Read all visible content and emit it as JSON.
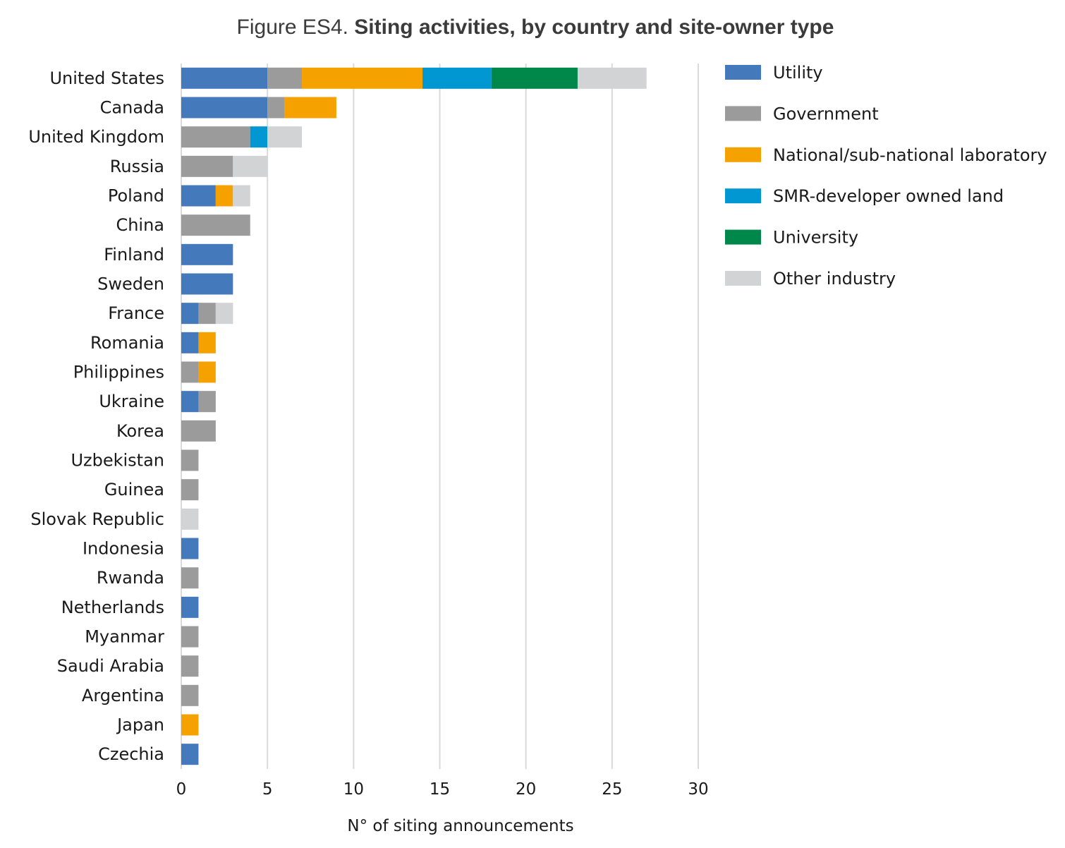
{
  "title": {
    "prefix": "Figure ES4.",
    "main": "Siting activities, by country and site-owner type"
  },
  "chart_data": {
    "type": "bar",
    "orientation": "horizontal",
    "stacked": true,
    "categories": [
      "United States",
      "Canada",
      "United Kingdom",
      "Russia",
      "Poland",
      "China",
      "Finland",
      "Sweden",
      "France",
      "Romania",
      "Philippines",
      "Ukraine",
      "Korea",
      "Uzbekistan",
      "Guinea",
      "Slovak Republic",
      "Indonesia",
      "Rwanda",
      "Netherlands",
      "Myanmar",
      "Saudi Arabia",
      "Argentina",
      "Japan",
      "Czechia"
    ],
    "series": [
      {
        "name": "Utility",
        "color": "#4479bb",
        "values": [
          5,
          5,
          0,
          0,
          2,
          0,
          3,
          3,
          1,
          1,
          0,
          1,
          0,
          0,
          0,
          0,
          1,
          0,
          1,
          0,
          0,
          0,
          0,
          1
        ]
      },
      {
        "name": "Government",
        "color": "#9b9b9b",
        "values": [
          2,
          1,
          4,
          3,
          0,
          4,
          0,
          0,
          1,
          0,
          1,
          1,
          2,
          1,
          1,
          0,
          0,
          1,
          0,
          1,
          1,
          1,
          0,
          0
        ]
      },
      {
        "name": "National/sub-national laboratory",
        "color": "#f5a201",
        "values": [
          7,
          3,
          0,
          0,
          1,
          0,
          0,
          0,
          0,
          1,
          1,
          0,
          0,
          0,
          0,
          0,
          0,
          0,
          0,
          0,
          0,
          0,
          1,
          0
        ]
      },
      {
        "name": "SMR-developer owned land",
        "color": "#0097d3",
        "values": [
          4,
          0,
          1,
          0,
          0,
          0,
          0,
          0,
          0,
          0,
          0,
          0,
          0,
          0,
          0,
          0,
          0,
          0,
          0,
          0,
          0,
          0,
          0,
          0
        ]
      },
      {
        "name": "University",
        "color": "#00874a",
        "values": [
          5,
          0,
          0,
          0,
          0,
          0,
          0,
          0,
          0,
          0,
          0,
          0,
          0,
          0,
          0,
          0,
          0,
          0,
          0,
          0,
          0,
          0,
          0,
          0
        ]
      },
      {
        "name": "Other industry",
        "color": "#d2d3d5",
        "values": [
          4,
          0,
          2,
          2,
          1,
          0,
          0,
          0,
          1,
          0,
          0,
          0,
          0,
          0,
          0,
          1,
          0,
          0,
          0,
          0,
          0,
          0,
          0,
          0
        ]
      }
    ],
    "xlabel": "N° of siting announcements",
    "xlim": [
      0,
      30
    ],
    "xticks": [
      0,
      5,
      10,
      15,
      20,
      25,
      30
    ],
    "grid": true,
    "legend_position": "right"
  }
}
